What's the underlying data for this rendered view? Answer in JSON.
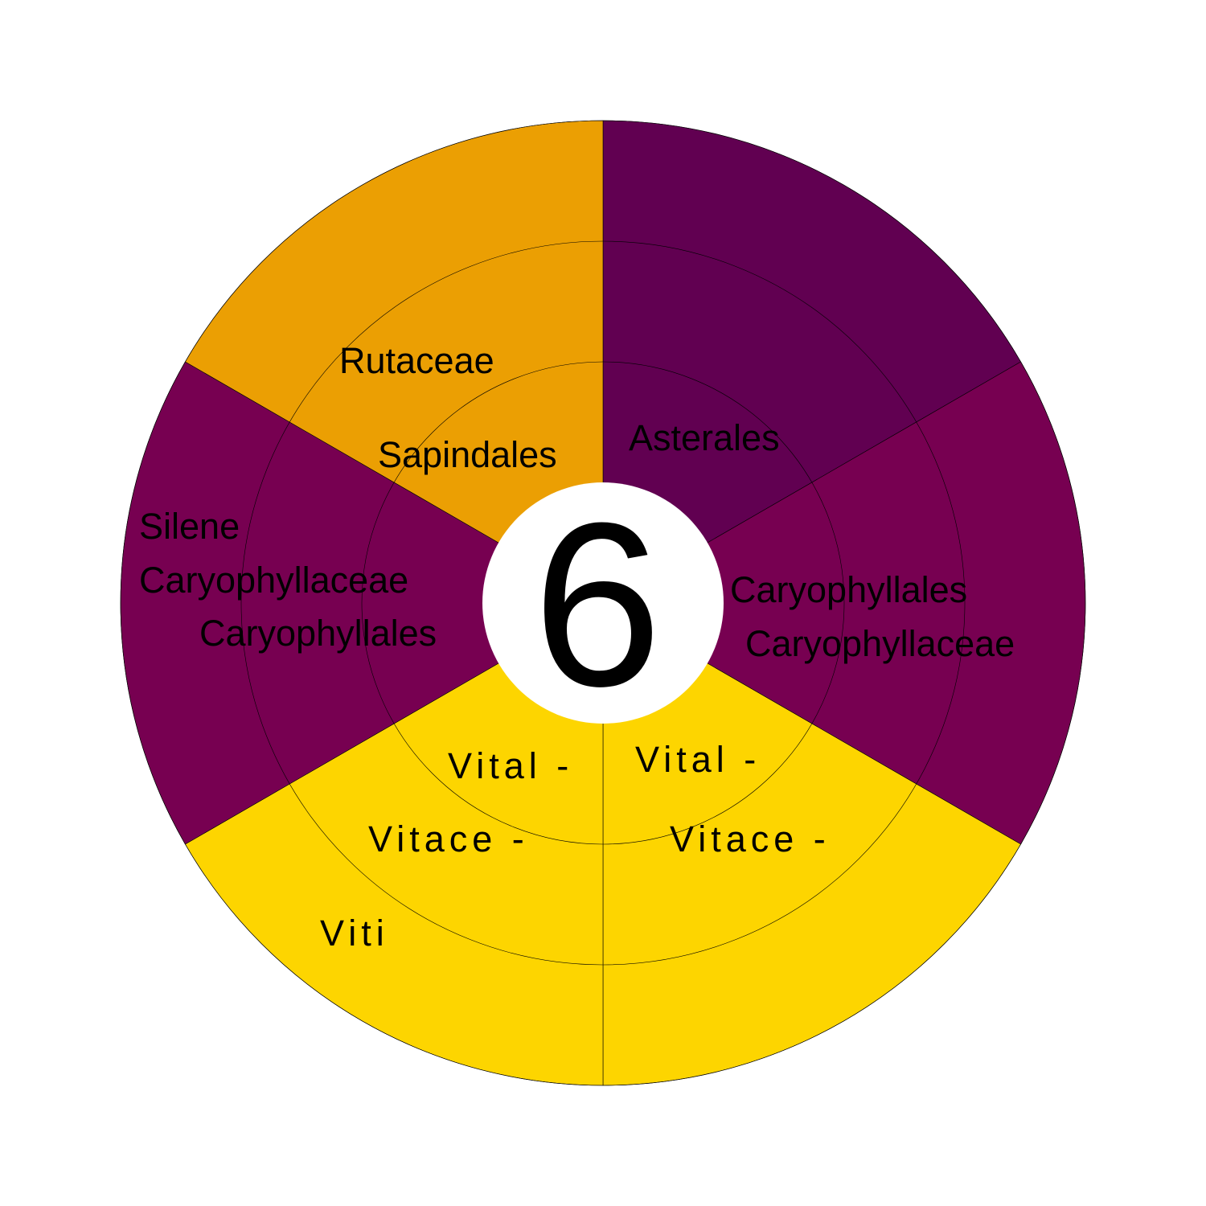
{
  "center_number": "6",
  "colors": {
    "rutaceae_sector": "#EB9F03",
    "asterales_sector": "#610051",
    "caryophyllales_sector": "#770051",
    "vitaceae_sector": "#FDD500",
    "center_disc": "#FFFFFF",
    "outline": "#000000"
  },
  "sectors": [
    {
      "id": "asterales",
      "color_key": "asterales_sector",
      "labels": [
        "Asterales"
      ]
    },
    {
      "id": "caryophyllales-right",
      "color_key": "caryophyllales_sector",
      "labels": [
        "Caryophyllales",
        "Caryophyllaceae"
      ]
    },
    {
      "id": "vitaceae-right",
      "color_key": "vitaceae_sector",
      "labels": [
        "Vital -",
        "Vitace -"
      ]
    },
    {
      "id": "vitaceae-left",
      "color_key": "vitaceae_sector",
      "labels": [
        "Vital -",
        "Vitace -",
        "Viti"
      ]
    },
    {
      "id": "caryophyllales-left",
      "color_key": "caryophyllales_sector",
      "labels": [
        "Caryophyllales",
        "Caryophyllaceae",
        "Silene"
      ]
    },
    {
      "id": "rutaceae",
      "color_key": "rutaceae_sector",
      "labels": [
        "Sapindales",
        "Rutaceae"
      ]
    }
  ]
}
